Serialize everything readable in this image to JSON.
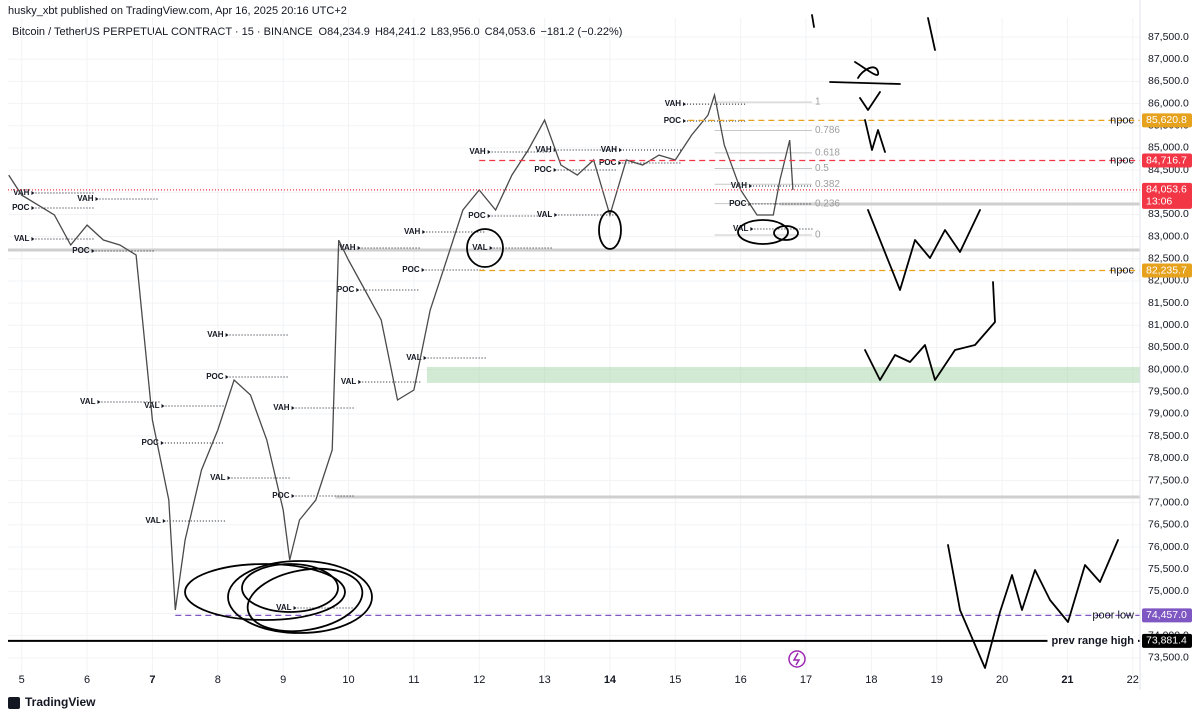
{
  "header": {
    "publisher": "husky_xbt published on TradingView.com, Apr 16, 2025 20:16 UTC+2",
    "symbol": "Bitcoin / TetherUS PERPETUAL CONTRACT · 15 · BINANCE",
    "ohlc": [
      {
        "key": "O",
        "value": "84,234.9"
      },
      {
        "key": "H",
        "value": "84,241.2"
      },
      {
        "key": "L",
        "value": "83,956.0"
      },
      {
        "key": "C",
        "value": "84,053.6"
      }
    ],
    "change": "−181.2 (−0.22%)"
  },
  "footer": {
    "brand": "TradingView"
  },
  "chart_data": {
    "type": "line",
    "color": "#4a4a4a",
    "xlim": [
      4.79,
      22.11
    ],
    "xticks": [
      5,
      6,
      7,
      8,
      9,
      10,
      11,
      12,
      13,
      14,
      15,
      16,
      17,
      18,
      19,
      20,
      21,
      22
    ],
    "week_start_ticks": [
      7,
      14,
      21
    ],
    "ylim": [
      73000,
      87930
    ],
    "yticks": [
      {
        "value": 73500,
        "label": "73,500.0"
      },
      {
        "value": 74000,
        "label": "74,000.0"
      },
      {
        "value": 74500,
        "label": "74,500.0"
      },
      {
        "value": 75000,
        "label": "75,000.0"
      },
      {
        "value": 75500,
        "label": "75,500.0"
      },
      {
        "value": 76000,
        "label": "76,000.0"
      },
      {
        "value": 76500,
        "label": "76,500.0"
      },
      {
        "value": 77000,
        "label": "77,000.0"
      },
      {
        "value": 77500,
        "label": "77,500.0"
      },
      {
        "value": 78000,
        "label": "78,000.0"
      },
      {
        "value": 78500,
        "label": "78,500.0"
      },
      {
        "value": 79000,
        "label": "79,000.0"
      },
      {
        "value": 79500,
        "label": "79,500.0"
      },
      {
        "value": 80000,
        "label": "80,000.0"
      },
      {
        "value": 80500,
        "label": "80,500.0"
      },
      {
        "value": 81000,
        "label": "81,000.0"
      },
      {
        "value": 81500,
        "label": "81,500.0"
      },
      {
        "value": 82000,
        "label": "82,000.0"
      },
      {
        "value": 82500,
        "label": "82,500.0"
      },
      {
        "value": 83000,
        "label": "83,000.0"
      },
      {
        "value": 83500,
        "label": "83,500.0"
      },
      {
        "value": 84000,
        "label": "84,000.0"
      },
      {
        "value": 84500,
        "label": "84,500.0"
      },
      {
        "value": 85000,
        "label": "85,000.0"
      },
      {
        "value": 85500,
        "label": "85,500.0"
      },
      {
        "value": 86000,
        "label": "86,000.0"
      },
      {
        "value": 86500,
        "label": "86,500.0"
      },
      {
        "value": 87000,
        "label": "87,000.0"
      },
      {
        "value": 87500,
        "label": "87,500.0"
      }
    ],
    "x": [
      4.8,
      5.0,
      5.25,
      5.5,
      5.75,
      6.0,
      6.25,
      6.5,
      6.75,
      7.0,
      7.25,
      7.35,
      7.5,
      7.75,
      8.0,
      8.25,
      8.5,
      8.75,
      9.0,
      9.1,
      9.25,
      9.5,
      9.75,
      9.85,
      10.0,
      10.25,
      10.5,
      10.75,
      11.0,
      11.25,
      11.5,
      11.75,
      12.0,
      12.25,
      12.5,
      12.75,
      13.0,
      13.25,
      13.5,
      13.75,
      14.0,
      14.25,
      14.5,
      14.75,
      15.0,
      15.25,
      15.5,
      15.6,
      15.75,
      16.0,
      16.25,
      16.5,
      16.6,
      16.75,
      16.8
    ],
    "values": [
      84388,
      83937,
      83711,
      83486,
      82810,
      83260,
      82923,
      82810,
      82584,
      78863,
      77059,
      74579,
      76157,
      77735,
      78638,
      79765,
      79427,
      78412,
      76834,
      75706,
      76608,
      77059,
      78187,
      82922,
      82471,
      81795,
      81118,
      79314,
      79540,
      81344,
      82471,
      83599,
      84050,
      83599,
      84388,
      84952,
      85628,
      84614,
      84388,
      84727,
      83486,
      84727,
      84614,
      84839,
      84727,
      85290,
      85741,
      86192,
      85064,
      84050,
      83486,
      83486,
      84275,
      85177,
      84053.6
    ],
    "levels": [
      {
        "name": "npoc",
        "value": 85620.8,
        "label": "85,620.8",
        "color": "#e6a11d",
        "style": "dashed",
        "start": 15.2
      },
      {
        "name": "npoc",
        "value": 84716.7,
        "label": "84,716.7",
        "color": "#f23645",
        "style": "dashed",
        "start": 12.0
      },
      {
        "value": 84053.6,
        "label": "84,053.6",
        "countdown": "13:06",
        "color": "#f23645",
        "style": "dotted",
        "start": 4.79
      },
      {
        "name": "npoc",
        "value": 82235.7,
        "label": "82,235.7",
        "color": "#e6a11d",
        "style": "dashed",
        "start": 12.0
      },
      {
        "name": "poor low",
        "value": 74457.0,
        "label": "74,457.0",
        "color": "#7e57c2",
        "style": "dashed",
        "start": 7.35
      },
      {
        "name": "prev range high",
        "value": 73881.4,
        "label": "73,881.4",
        "color": "#000000",
        "style": "solid",
        "start": 4.79
      }
    ],
    "hlines": [
      {
        "price": 82697,
        "start": 4.79
      },
      {
        "price": 77127,
        "start": 9.8
      },
      {
        "price": 83734,
        "start": 16.6
      }
    ],
    "zone": {
      "from": 79700,
      "to": 80060,
      "start": 11.2,
      "color": "#a5d6a7"
    },
    "fib": {
      "start": 15.6,
      "end": 17.55,
      "low": 83035,
      "high": 86034,
      "levels": [
        0,
        0.236,
        0.382,
        0.5,
        0.618,
        0.786,
        1
      ]
    },
    "profile_labels": [
      {
        "label": "VAH",
        "x": 5.21,
        "price": 83982
      },
      {
        "label": "POC",
        "x": 5.21,
        "price": 83644
      },
      {
        "label": "VAL",
        "x": 5.21,
        "price": 82945
      },
      {
        "label": "VAH",
        "x": 6.19,
        "price": 83847
      },
      {
        "label": "POC",
        "x": 6.13,
        "price": 82674
      },
      {
        "label": "VAL",
        "x": 6.22,
        "price": 79269
      },
      {
        "label": "VAL",
        "x": 7.2,
        "price": 79179
      },
      {
        "label": "POC",
        "x": 7.19,
        "price": 78345
      },
      {
        "label": "VAL",
        "x": 7.22,
        "price": 76586
      },
      {
        "label": "VAH",
        "x": 8.18,
        "price": 80780
      },
      {
        "label": "POC",
        "x": 8.18,
        "price": 79833
      },
      {
        "label": "VAL",
        "x": 8.21,
        "price": 77556
      },
      {
        "label": "VAH",
        "x": 9.19,
        "price": 79134
      },
      {
        "label": "POC",
        "x": 9.19,
        "price": 77149
      },
      {
        "label": "VAL",
        "x": 9.22,
        "price": 74624
      },
      {
        "label": "VAH",
        "x": 10.2,
        "price": 82742
      },
      {
        "label": "POC",
        "x": 10.18,
        "price": 81795
      },
      {
        "label": "VAL",
        "x": 10.21,
        "price": 79720
      },
      {
        "label": "VAH",
        "x": 11.19,
        "price": 83103
      },
      {
        "label": "POC",
        "x": 11.18,
        "price": 82246
      },
      {
        "label": "VAL",
        "x": 11.21,
        "price": 80261
      },
      {
        "label": "VAH",
        "x": 12.19,
        "price": 84907
      },
      {
        "label": "POC",
        "x": 12.19,
        "price": 83464
      },
      {
        "label": "VAL",
        "x": 12.22,
        "price": 82742
      },
      {
        "label": "VAH",
        "x": 13.2,
        "price": 84952
      },
      {
        "label": "POC",
        "x": 13.2,
        "price": 84501
      },
      {
        "label": "VAL",
        "x": 13.21,
        "price": 83486
      },
      {
        "label": "VAH",
        "x": 14.2,
        "price": 84952
      },
      {
        "label": "POC",
        "x": 14.19,
        "price": 84659
      },
      {
        "label": "VAH",
        "x": 15.18,
        "price": 85989
      },
      {
        "label": "POC",
        "x": 15.18,
        "price": 85606
      },
      {
        "label": "VAH",
        "x": 16.19,
        "price": 84140
      },
      {
        "label": "POC",
        "x": 16.18,
        "price": 83734
      },
      {
        "label": "VAL",
        "x": 16.21,
        "price": 83170
      }
    ]
  }
}
